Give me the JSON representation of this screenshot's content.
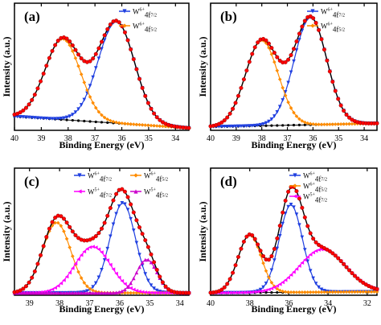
{
  "figure": {
    "panels": [
      {
        "id": "a",
        "label": "(a)",
        "xlabel": "Binding Energy (eV)",
        "ylabel": "Intensity (a.u.)",
        "ticks": [
          "40",
          "39",
          "38",
          "37",
          "36",
          "35",
          "34"
        ],
        "legend": [
          {
            "sym": "W",
            "sup": "6+",
            "rest": "4f",
            "sub": "7/2"
          },
          {
            "sym": "W",
            "sup": "6+",
            "rest": "4f",
            "sub": "5/2"
          }
        ]
      },
      {
        "id": "b",
        "label": "(b)",
        "xlabel": "Binding Energy (eV)",
        "ylabel": "Intensity (a.u.)",
        "ticks": [
          "40",
          "39",
          "38",
          "37",
          "36",
          "35",
          "34"
        ],
        "legend": [
          {
            "sym": "W",
            "sup": "6+",
            "rest": "4f",
            "sub": "7/2"
          },
          {
            "sym": "W",
            "sup": "6+",
            "rest": "4f",
            "sub": "5/2"
          }
        ]
      },
      {
        "id": "c",
        "label": "(c)",
        "xlabel": "Binding Energy (eV)",
        "ylabel": "Intensity (a.u.)",
        "ticks": [
          "39",
          "38",
          "37",
          "36",
          "35",
          "34"
        ],
        "legend": [
          {
            "sym": "W",
            "sup": "6+",
            "rest": "4f",
            "sub": "7/2"
          },
          {
            "sym": "W",
            "sup": "6+",
            "rest": "4f",
            "sub": "5/2"
          },
          {
            "sym": "W",
            "sup": "5+",
            "rest": "4f",
            "sub": "7/2"
          },
          {
            "sym": "W",
            "sup": "5+",
            "rest": "4f",
            "sub": "5/2"
          }
        ]
      },
      {
        "id": "d",
        "label": "(d)",
        "xlabel": "Binding Energy (eV)",
        "ylabel": "Intensity (a.u.)",
        "ticks": [
          "40",
          "38",
          "36",
          "34",
          "32"
        ],
        "legend": [
          {
            "sym": "W",
            "sup": "6+",
            "rest": "4f",
            "sub": "7/2"
          },
          {
            "sym": "W",
            "sup": "6+",
            "rest": "4f",
            "sub": "5/2"
          },
          {
            "sym": "W",
            "sup": "5+",
            "rest": "4f",
            "sub": "7/2"
          }
        ]
      }
    ]
  },
  "chart_data": [
    {
      "panel": "a",
      "type": "line",
      "xlim": [
        40,
        33.5
      ],
      "ylim": [
        0,
        1.1
      ],
      "reversed_x": true,
      "grid": false,
      "legend_position": "top-right",
      "colors": {
        "experimental": "#ff0000",
        "fit": "#000000",
        "background": "#000000",
        "W6+ 4f7/2": "#1f3fe0",
        "W6+ 4f5/2": "#ff8c00"
      },
      "background": {
        "start": 0.12,
        "end": 0.02
      },
      "peaks": [
        {
          "name": "W6+ 4f7/2",
          "center": 36.2,
          "height": 0.88,
          "fwhm": 1.6
        },
        {
          "name": "W6+ 4f5/2",
          "center": 38.2,
          "height": 0.7,
          "fwhm": 1.55
        }
      ]
    },
    {
      "panel": "b",
      "type": "line",
      "xlim": [
        40,
        33.5
      ],
      "ylim": [
        0,
        1.1
      ],
      "reversed_x": true,
      "grid": false,
      "legend_position": "top-right",
      "colors": {
        "experimental": "#ff0000",
        "fit": "#000000",
        "background": "#000000",
        "W6+ 4f7/2": "#1f3fe0",
        "W6+ 4f5/2": "#ff8c00"
      },
      "background": {
        "start": 0.03,
        "end": 0.06
      },
      "peaks": [
        {
          "name": "W6+ 4f7/2",
          "center": 36.1,
          "height": 0.93,
          "fwhm": 1.5
        },
        {
          "name": "W6+ 4f5/2",
          "center": 38.0,
          "height": 0.74,
          "fwhm": 1.5
        }
      ]
    },
    {
      "panel": "c",
      "type": "line",
      "xlim": [
        39.5,
        33.7
      ],
      "ylim": [
        0,
        1.1
      ],
      "reversed_x": true,
      "grid": false,
      "legend_position": "top",
      "colors": {
        "experimental": "#ff0000",
        "fit": "#000000",
        "background": "#000000",
        "W6+ 4f7/2": "#1f3fe0",
        "W6+ 4f5/2": "#ff8c00",
        "W5+ 4f7/2": "#ff00ff",
        "W5+ 4f5/2": "#cc00cc"
      },
      "background": {
        "start": 0.02,
        "end": 0.02
      },
      "peaks": [
        {
          "name": "W6+ 4f7/2",
          "center": 35.9,
          "height": 0.78,
          "fwhm": 1.0
        },
        {
          "name": "W6+ 4f5/2",
          "center": 38.1,
          "height": 0.61,
          "fwhm": 1.1
        },
        {
          "name": "W5+ 4f7/2",
          "center": 36.9,
          "height": 0.4,
          "fwhm": 1.4
        },
        {
          "name": "W5+ 4f5/2",
          "center": 35.1,
          "height": 0.29,
          "fwhm": 0.8
        }
      ]
    },
    {
      "panel": "d",
      "type": "line",
      "xlim": [
        40,
        31.5
      ],
      "ylim": [
        0,
        1.1
      ],
      "reversed_x": true,
      "grid": false,
      "legend_position": "top-right",
      "colors": {
        "experimental": "#ff0000",
        "fit": "#000000",
        "background": "#000000",
        "W6+ 4f7/2": "#1f3fe0",
        "W6+ 4f5/2": "#ff8c00",
        "W5+ 4f7/2": "#ff00ff"
      },
      "background": {
        "start": 0.02,
        "end": 0.03
      },
      "peaks": [
        {
          "name": "W6+ 4f7/2",
          "center": 35.9,
          "height": 0.76,
          "fwhm": 1.4
        },
        {
          "name": "W6+ 4f5/2",
          "center": 38.0,
          "height": 0.5,
          "fwhm": 1.4
        },
        {
          "name": "W5+ 4f7/2",
          "center": 34.3,
          "height": 0.37,
          "fwhm": 2.8
        }
      ]
    }
  ]
}
